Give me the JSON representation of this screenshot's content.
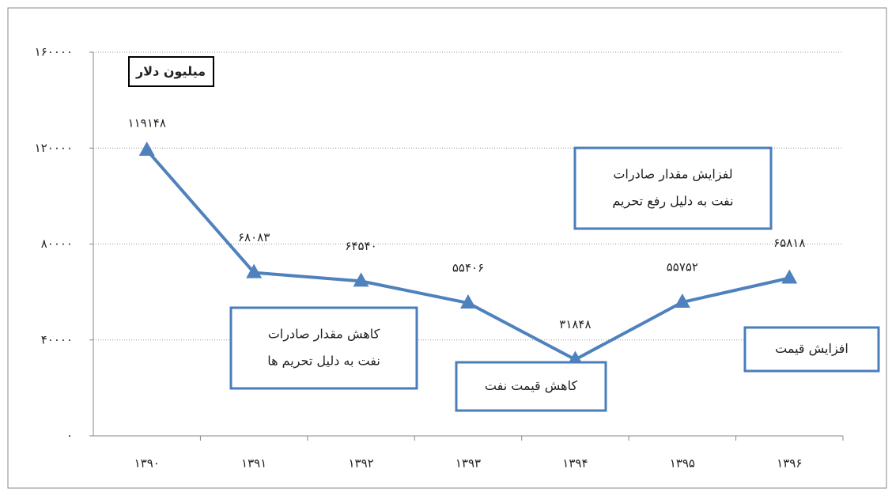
{
  "chart_data": {
    "type": "line",
    "categories": [
      "۱۳۹۰",
      "۱۳۹۱",
      "۱۳۹۲",
      "۱۳۹۳",
      "۱۳۹۴",
      "۱۳۹۵",
      "۱۳۹۶"
    ],
    "series": [
      {
        "color": "#4f81bd",
        "values": [
          119148,
          68083,
          64540,
          55406,
          31848,
          55752,
          65818
        ],
        "value_labels": [
          "۱۱۹۱۴۸",
          "۶۸۰۸۳",
          "۶۴۵۴۰",
          "۵۵۴۰۶",
          "۳۱۸۴۸",
          "۵۵۷۵۲",
          "۶۵۸۱۸"
        ]
      }
    ],
    "ylim": [
      0,
      160000
    ],
    "yticks": [
      {
        "value": 0,
        "label": "۰"
      },
      {
        "value": 40000,
        "label": "۴۰۰۰۰"
      },
      {
        "value": 80000,
        "label": "۸۰۰۰۰"
      },
      {
        "value": 120000,
        "label": "۱۲۰۰۰۰"
      },
      {
        "value": 160000,
        "label": "۱۶۰۰۰۰"
      }
    ],
    "grid": true,
    "unit_label": "میلیون دلار",
    "annotations": [
      {
        "lines": [
          "کاهش مقدار صادرات",
          "نفت به دلیل تحریم ها"
        ]
      },
      {
        "lines": [
          "کاهش قیمت نفت"
        ]
      },
      {
        "lines": [
          "لفزایش مقدار صادرات",
          "نفت به دلیل رفع تحریم"
        ]
      },
      {
        "lines": [
          "افزایش قیمت"
        ]
      }
    ]
  }
}
